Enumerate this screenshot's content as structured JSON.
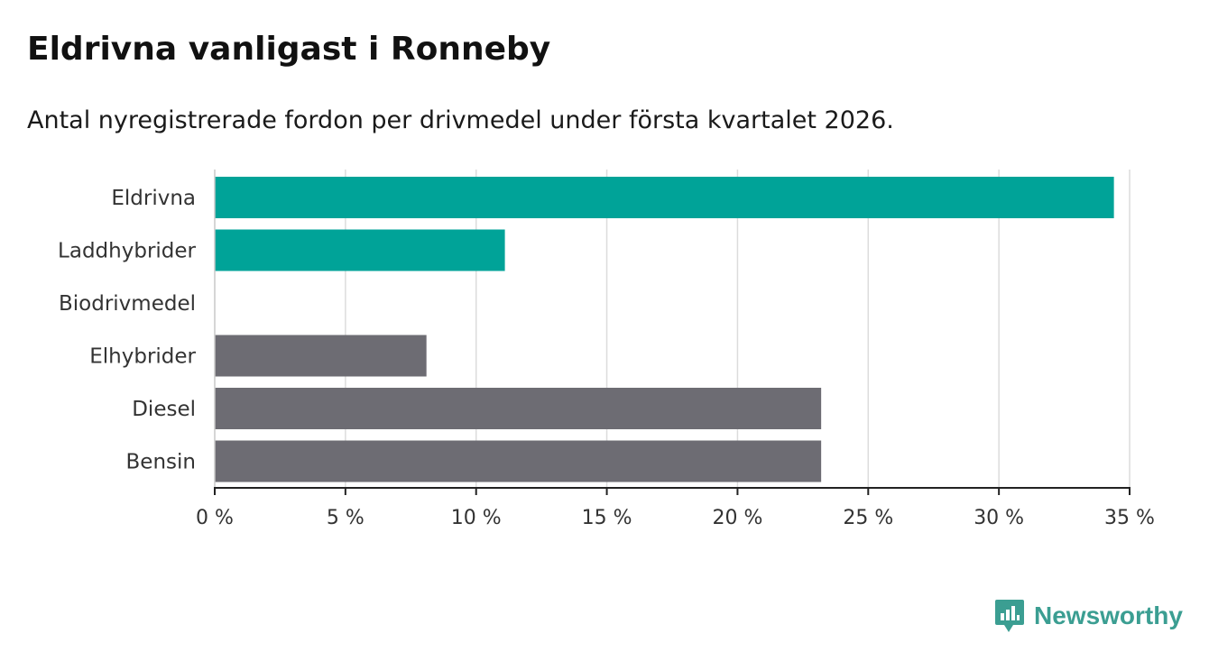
{
  "chart_data": {
    "type": "bar",
    "orientation": "horizontal",
    "title": "Eldrivna vanligast i Ronneby",
    "subtitle": "Antal nyregistrerade fordon per drivmedel under första kvartalet 2026.",
    "categories": [
      "Eldrivna",
      "Laddhybrider",
      "Biodrivmedel",
      "Elhybrider",
      "Diesel",
      "Bensin"
    ],
    "values": [
      34.4,
      11.1,
      0,
      8.1,
      23.2,
      23.2
    ],
    "colors": [
      "#00a398",
      "#00a398",
      "#00a398",
      "#6d6c73",
      "#6d6c73",
      "#6d6c73"
    ],
    "xlim": [
      0,
      35
    ],
    "ticks": [
      0,
      5,
      10,
      15,
      20,
      25,
      30,
      35
    ],
    "tick_labels": [
      "0 %",
      "5 %",
      "10 %",
      "15 %",
      "20 %",
      "25 %",
      "30 %",
      "35 %"
    ],
    "grid": true,
    "xlabel": "",
    "ylabel": ""
  },
  "brand": {
    "name": "Newsworthy",
    "color": "#3b9e92",
    "icon": "newsworthy-logo-icon"
  }
}
